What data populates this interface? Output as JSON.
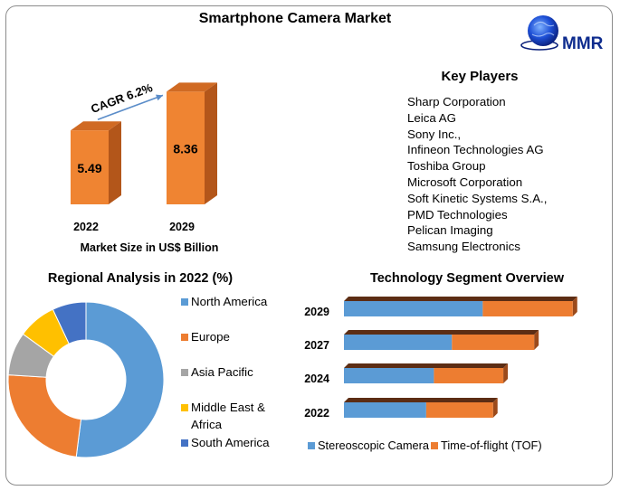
{
  "title": "Smartphone Camera Market",
  "logo": {
    "text": "MMR",
    "colors": {
      "globe": "#1d4fd6",
      "text": "#0e2c8e"
    }
  },
  "key_players": {
    "title": "Key Players",
    "items": [
      "Sharp Corporation",
      "Leica AG",
      "Sony Inc.,",
      "Infineon Technologies AG",
      "Toshiba Group",
      "Microsoft Corporation",
      "Soft Kinetic Systems S.A.,",
      "PMD Technologies",
      "Pelican Imaging",
      "Samsung Electronics"
    ]
  },
  "chart_data": [
    {
      "type": "bar",
      "categories": [
        "2022",
        "2029"
      ],
      "values": [
        5.49,
        8.36
      ],
      "xlabel": "Market Size in US$ Billion",
      "annotation": "CAGR 6.2%",
      "colors": {
        "front": "#ef8432",
        "side": "#b3561a",
        "top": "#d06a23",
        "arrow": "#5b8dc9"
      }
    },
    {
      "type": "pie",
      "title": "Regional Analysis in 2022 (%)",
      "labels": [
        "North America",
        "Europe",
        "Asia Pacific",
        "Middle East & Africa",
        "South America"
      ],
      "values": [
        52,
        24,
        9,
        8,
        7
      ],
      "colors": [
        "#5b9bd5",
        "#ed7d31",
        "#a5a5a5",
        "#ffc000",
        "#4472c4"
      ],
      "legend": "right"
    },
    {
      "type": "bar",
      "orientation": "horizontal",
      "stacked": true,
      "title": "Technology Segment Overview",
      "categories": [
        "2029",
        "2027",
        "2024",
        "2022"
      ],
      "series": [
        {
          "name": "Stereoscopic Camera",
          "values": [
            5.4,
            4.2,
            3.5,
            3.2
          ],
          "color": "#5b9bd5"
        },
        {
          "name": "Time-of-flight (TOF)",
          "values": [
            3.5,
            3.2,
            2.7,
            2.6
          ],
          "color": "#ed7d31"
        }
      ],
      "legend": "bottom"
    }
  ]
}
